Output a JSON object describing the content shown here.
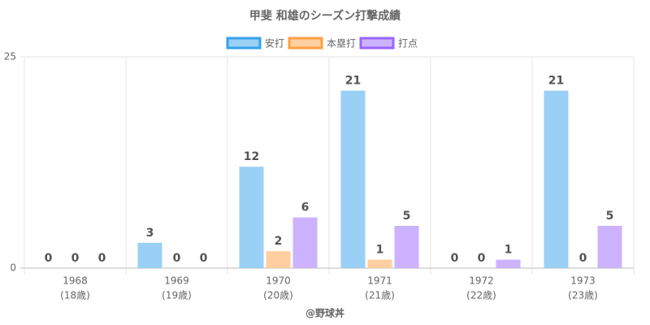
{
  "chart_data": {
    "type": "bar",
    "title": "甲斐 和雄のシーズン打撃成績",
    "footer": "@野球丼",
    "categories": [
      [
        "1968",
        "(18歳)"
      ],
      [
        "1969",
        "(19歳)"
      ],
      [
        "1970",
        "(20歳)"
      ],
      [
        "1971",
        "(21歳)"
      ],
      [
        "1972",
        "(22歳)"
      ],
      [
        "1973",
        "(23歳)"
      ]
    ],
    "series": [
      {
        "name": "安打",
        "color": "#9ad0f5",
        "border": "#36a2eb",
        "values": [
          0,
          3,
          12,
          21,
          0,
          21
        ]
      },
      {
        "name": "本塁打",
        "color": "#ffcf9f",
        "border": "#ff9f40",
        "values": [
          0,
          0,
          2,
          1,
          0,
          0
        ]
      },
      {
        "name": "打点",
        "color": "#ccb2ff",
        "border": "#9966ff",
        "values": [
          0,
          0,
          6,
          5,
          1,
          5
        ]
      }
    ],
    "ylim": [
      0,
      25
    ],
    "yticks": [
      0,
      25
    ],
    "grid": true,
    "legend": "top"
  }
}
